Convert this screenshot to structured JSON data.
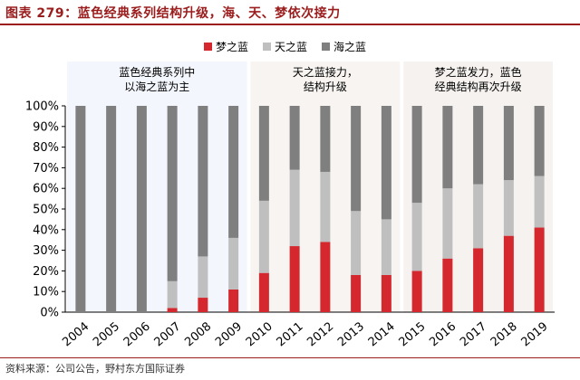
{
  "header": {
    "title": "图表 279：蓝色经典系列结构升级，海、天、梦依次接力"
  },
  "footer": {
    "source": "资料来源：公司公告，野村东方国际证券"
  },
  "chart_data": {
    "type": "bar",
    "stacked": true,
    "normalized": true,
    "categories": [
      "2004",
      "2005",
      "2006",
      "2007",
      "2008",
      "2009",
      "2010",
      "2011",
      "2012",
      "2013",
      "2014",
      "2015",
      "2016",
      "2017",
      "2018",
      "2019"
    ],
    "series": [
      {
        "name": "梦之蓝",
        "color": "#d4272e",
        "values": [
          0,
          0,
          0,
          2,
          7,
          11,
          19,
          32,
          34,
          18,
          18,
          20,
          26,
          31,
          37,
          41
        ]
      },
      {
        "name": "天之蓝",
        "color": "#bfbfbf",
        "values": [
          0,
          0,
          0,
          13,
          20,
          25,
          35,
          37,
          34,
          31,
          27,
          33,
          34,
          31,
          27,
          25
        ]
      },
      {
        "name": "海之蓝",
        "color": "#7f7f7f",
        "values": [
          100,
          100,
          100,
          85,
          73,
          64,
          46,
          31,
          32,
          51,
          55,
          47,
          40,
          38,
          36,
          34
        ]
      }
    ],
    "ylim": [
      0,
      100
    ],
    "yticks": [
      "0%",
      "10%",
      "20%",
      "30%",
      "40%",
      "50%",
      "60%",
      "70%",
      "80%",
      "90%",
      "100%"
    ],
    "legend_position": "top-right",
    "annotations": [
      {
        "lines": [
          "蓝色经典系列中",
          "以海之蓝为主"
        ],
        "start": 0,
        "end": 5
      },
      {
        "lines": [
          "天之蓝接力，",
          "结构升级"
        ],
        "start": 6,
        "end": 10
      },
      {
        "lines": [
          "梦之蓝发力，蓝色",
          "经典结构再次升级"
        ],
        "start": 11,
        "end": 15
      }
    ]
  }
}
